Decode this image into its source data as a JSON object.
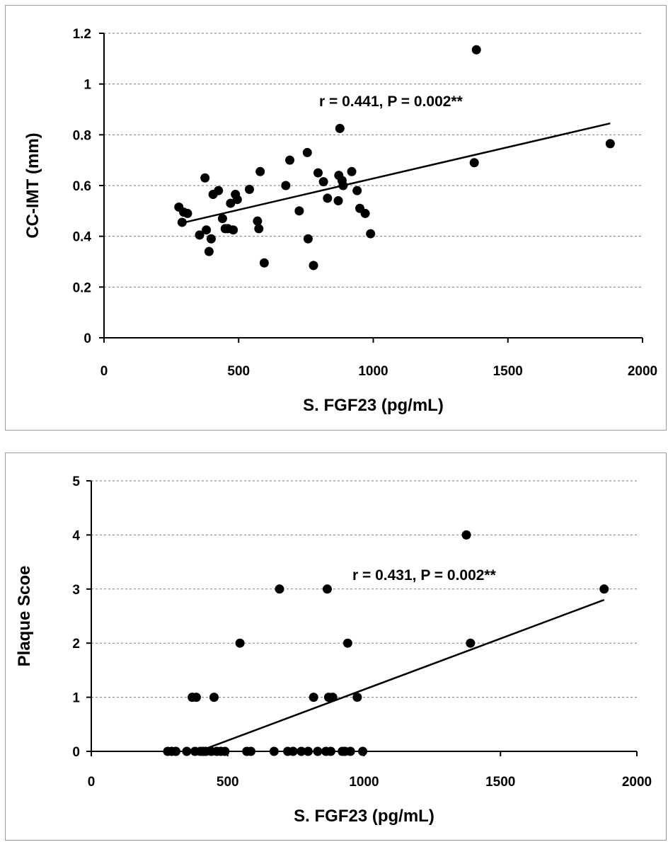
{
  "chart_data": [
    {
      "type": "scatter",
      "title": "",
      "xlabel": "S. FGF23 (pg/mL)",
      "ylabel": "CC-IMT (mm)",
      "annotation": "r = 0.441, P = 0.002**",
      "xlim": [
        0,
        2000
      ],
      "ylim": [
        0,
        1.2
      ],
      "xticks": [
        0,
        500,
        1000,
        1500,
        2000
      ],
      "yticks": [
        0,
        0.2,
        0.4,
        0.6,
        0.8,
        1,
        1.2
      ],
      "xtick_labels": [
        "0",
        "500",
        "1000",
        "1500",
        "2000"
      ],
      "ytick_labels": [
        "0",
        "0.2",
        "0.4",
        "0.6",
        "0.8",
        "1",
        "1.2"
      ],
      "grid": "horizontal-dashed",
      "legend": "none",
      "trendline": {
        "x": [
          300,
          1880
        ],
        "y": [
          0.455,
          0.845
        ]
      },
      "series": [
        {
          "x": [
            278,
            290,
            296,
            310,
            355,
            375,
            380,
            390,
            398,
            405,
            425,
            440,
            450,
            460,
            470,
            480,
            488,
            495,
            540,
            570,
            575,
            580,
            595,
            675,
            690,
            725,
            755,
            758,
            778,
            795,
            815,
            830,
            870,
            872,
            876,
            884,
            888,
            920,
            940,
            950,
            970,
            990,
            1375,
            1383,
            1880
          ],
          "y": [
            0.515,
            0.455,
            0.495,
            0.49,
            0.405,
            0.63,
            0.425,
            0.34,
            0.39,
            0.565,
            0.58,
            0.47,
            0.43,
            0.43,
            0.53,
            0.425,
            0.565,
            0.545,
            0.585,
            0.46,
            0.43,
            0.655,
            0.295,
            0.6,
            0.7,
            0.5,
            0.73,
            0.39,
            0.285,
            0.65,
            0.615,
            0.55,
            0.54,
            0.64,
            0.825,
            0.62,
            0.6,
            0.655,
            0.58,
            0.51,
            0.49,
            0.41,
            0.69,
            1.135,
            0.765
          ]
        }
      ]
    },
    {
      "type": "scatter",
      "title": "",
      "xlabel": "S. FGF23 (pg/mL)",
      "ylabel": "Plaque Scoe",
      "annotation": "r = 0.431, P = 0.002**",
      "xlim": [
        0,
        2000
      ],
      "ylim": [
        0,
        5
      ],
      "xticks": [
        0,
        500,
        1000,
        1500,
        2000
      ],
      "yticks": [
        0,
        1,
        2,
        3,
        4,
        5
      ],
      "xtick_labels": [
        "0",
        "500",
        "1000",
        "1500",
        "2000"
      ],
      "ytick_labels": [
        "0",
        "1",
        "2",
        "3",
        "4",
        "5"
      ],
      "grid": "horizontal-dashed",
      "legend": "none",
      "trendline": {
        "x": [
          420,
          1880
        ],
        "y": [
          0.05,
          2.8
        ]
      },
      "series": [
        {
          "x": [
            280,
            295,
            310,
            350,
            370,
            380,
            385,
            400,
            410,
            420,
            440,
            450,
            460,
            475,
            490,
            545,
            570,
            585,
            670,
            690,
            720,
            740,
            770,
            795,
            815,
            830,
            860,
            865,
            870,
            878,
            885,
            920,
            930,
            940,
            950,
            975,
            995,
            1375,
            1390,
            1880
          ],
          "y": [
            0,
            0,
            0,
            0,
            1,
            0,
            1,
            0,
            0,
            0,
            0,
            1,
            0,
            0,
            0,
            2,
            0,
            0,
            0,
            3,
            0,
            0,
            0,
            0,
            1,
            0,
            0,
            3,
            1,
            0,
            1,
            0,
            0,
            2,
            0,
            1,
            0,
            4,
            2,
            3
          ]
        }
      ]
    }
  ]
}
